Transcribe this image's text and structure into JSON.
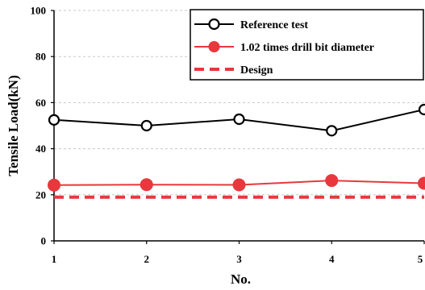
{
  "chart_data": {
    "type": "line",
    "xlabel": "No.",
    "ylabel": "Tensile Load(kN)",
    "x": [
      1,
      2,
      3,
      4,
      5
    ],
    "xlim": [
      1,
      5
    ],
    "ylim": [
      0,
      100
    ],
    "yticks": [
      0,
      20,
      40,
      60,
      80,
      100
    ],
    "xticks": [
      1,
      2,
      3,
      4,
      5
    ],
    "grid": "horizontal dashed",
    "legend_position": "top-right",
    "series": [
      {
        "name": "Reference test",
        "values": [
          52.5,
          50,
          52.8,
          47.8,
          57
        ],
        "color": "#000000",
        "marker": "open-circle",
        "line": "solid"
      },
      {
        "name": "1.02 times drill bit diameter",
        "values": [
          24.2,
          24.4,
          24.3,
          26.2,
          25
        ],
        "color": "#e8383d",
        "marker": "filled-circle",
        "line": "solid"
      },
      {
        "name": "Design",
        "values": [
          19,
          19,
          19,
          19,
          19
        ],
        "color": "#e8383d",
        "marker": "none",
        "line": "dashed"
      }
    ]
  }
}
